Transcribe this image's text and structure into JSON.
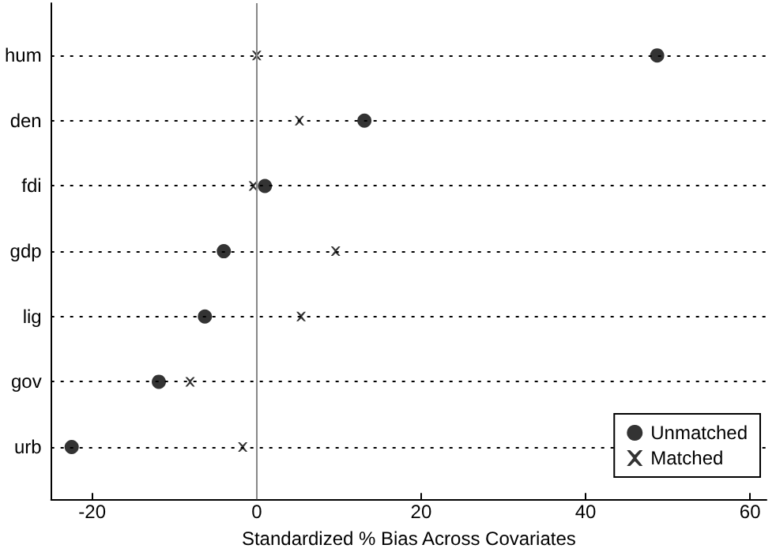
{
  "chart_data": {
    "type": "scatter",
    "orientation": "horizontal",
    "xlabel": "Standardized % Bias Across Covariates",
    "categories": [
      "hum",
      "den",
      "fdi",
      "gdp",
      "lig",
      "gov",
      "urb"
    ],
    "series": [
      {
        "name": "Unmatched",
        "color": "#000000",
        "marker": "circle",
        "values": [
          48.7,
          13.1,
          1.0,
          -4.0,
          -6.3,
          -11.9,
          -22.5
        ]
      },
      {
        "name": "Matched",
        "color": "#000000",
        "marker": "cross",
        "values": [
          0.0,
          5.2,
          -0.4,
          9.6,
          5.4,
          -8.1,
          -1.7
        ]
      }
    ],
    "xlim": [
      -25,
      62
    ],
    "xticks": [
      -20,
      0,
      20,
      40,
      60
    ],
    "ref_lines": [
      {
        "axis": "x",
        "value": 0,
        "color": "#888888"
      }
    ],
    "grid": "y",
    "legend": "bottom right"
  }
}
